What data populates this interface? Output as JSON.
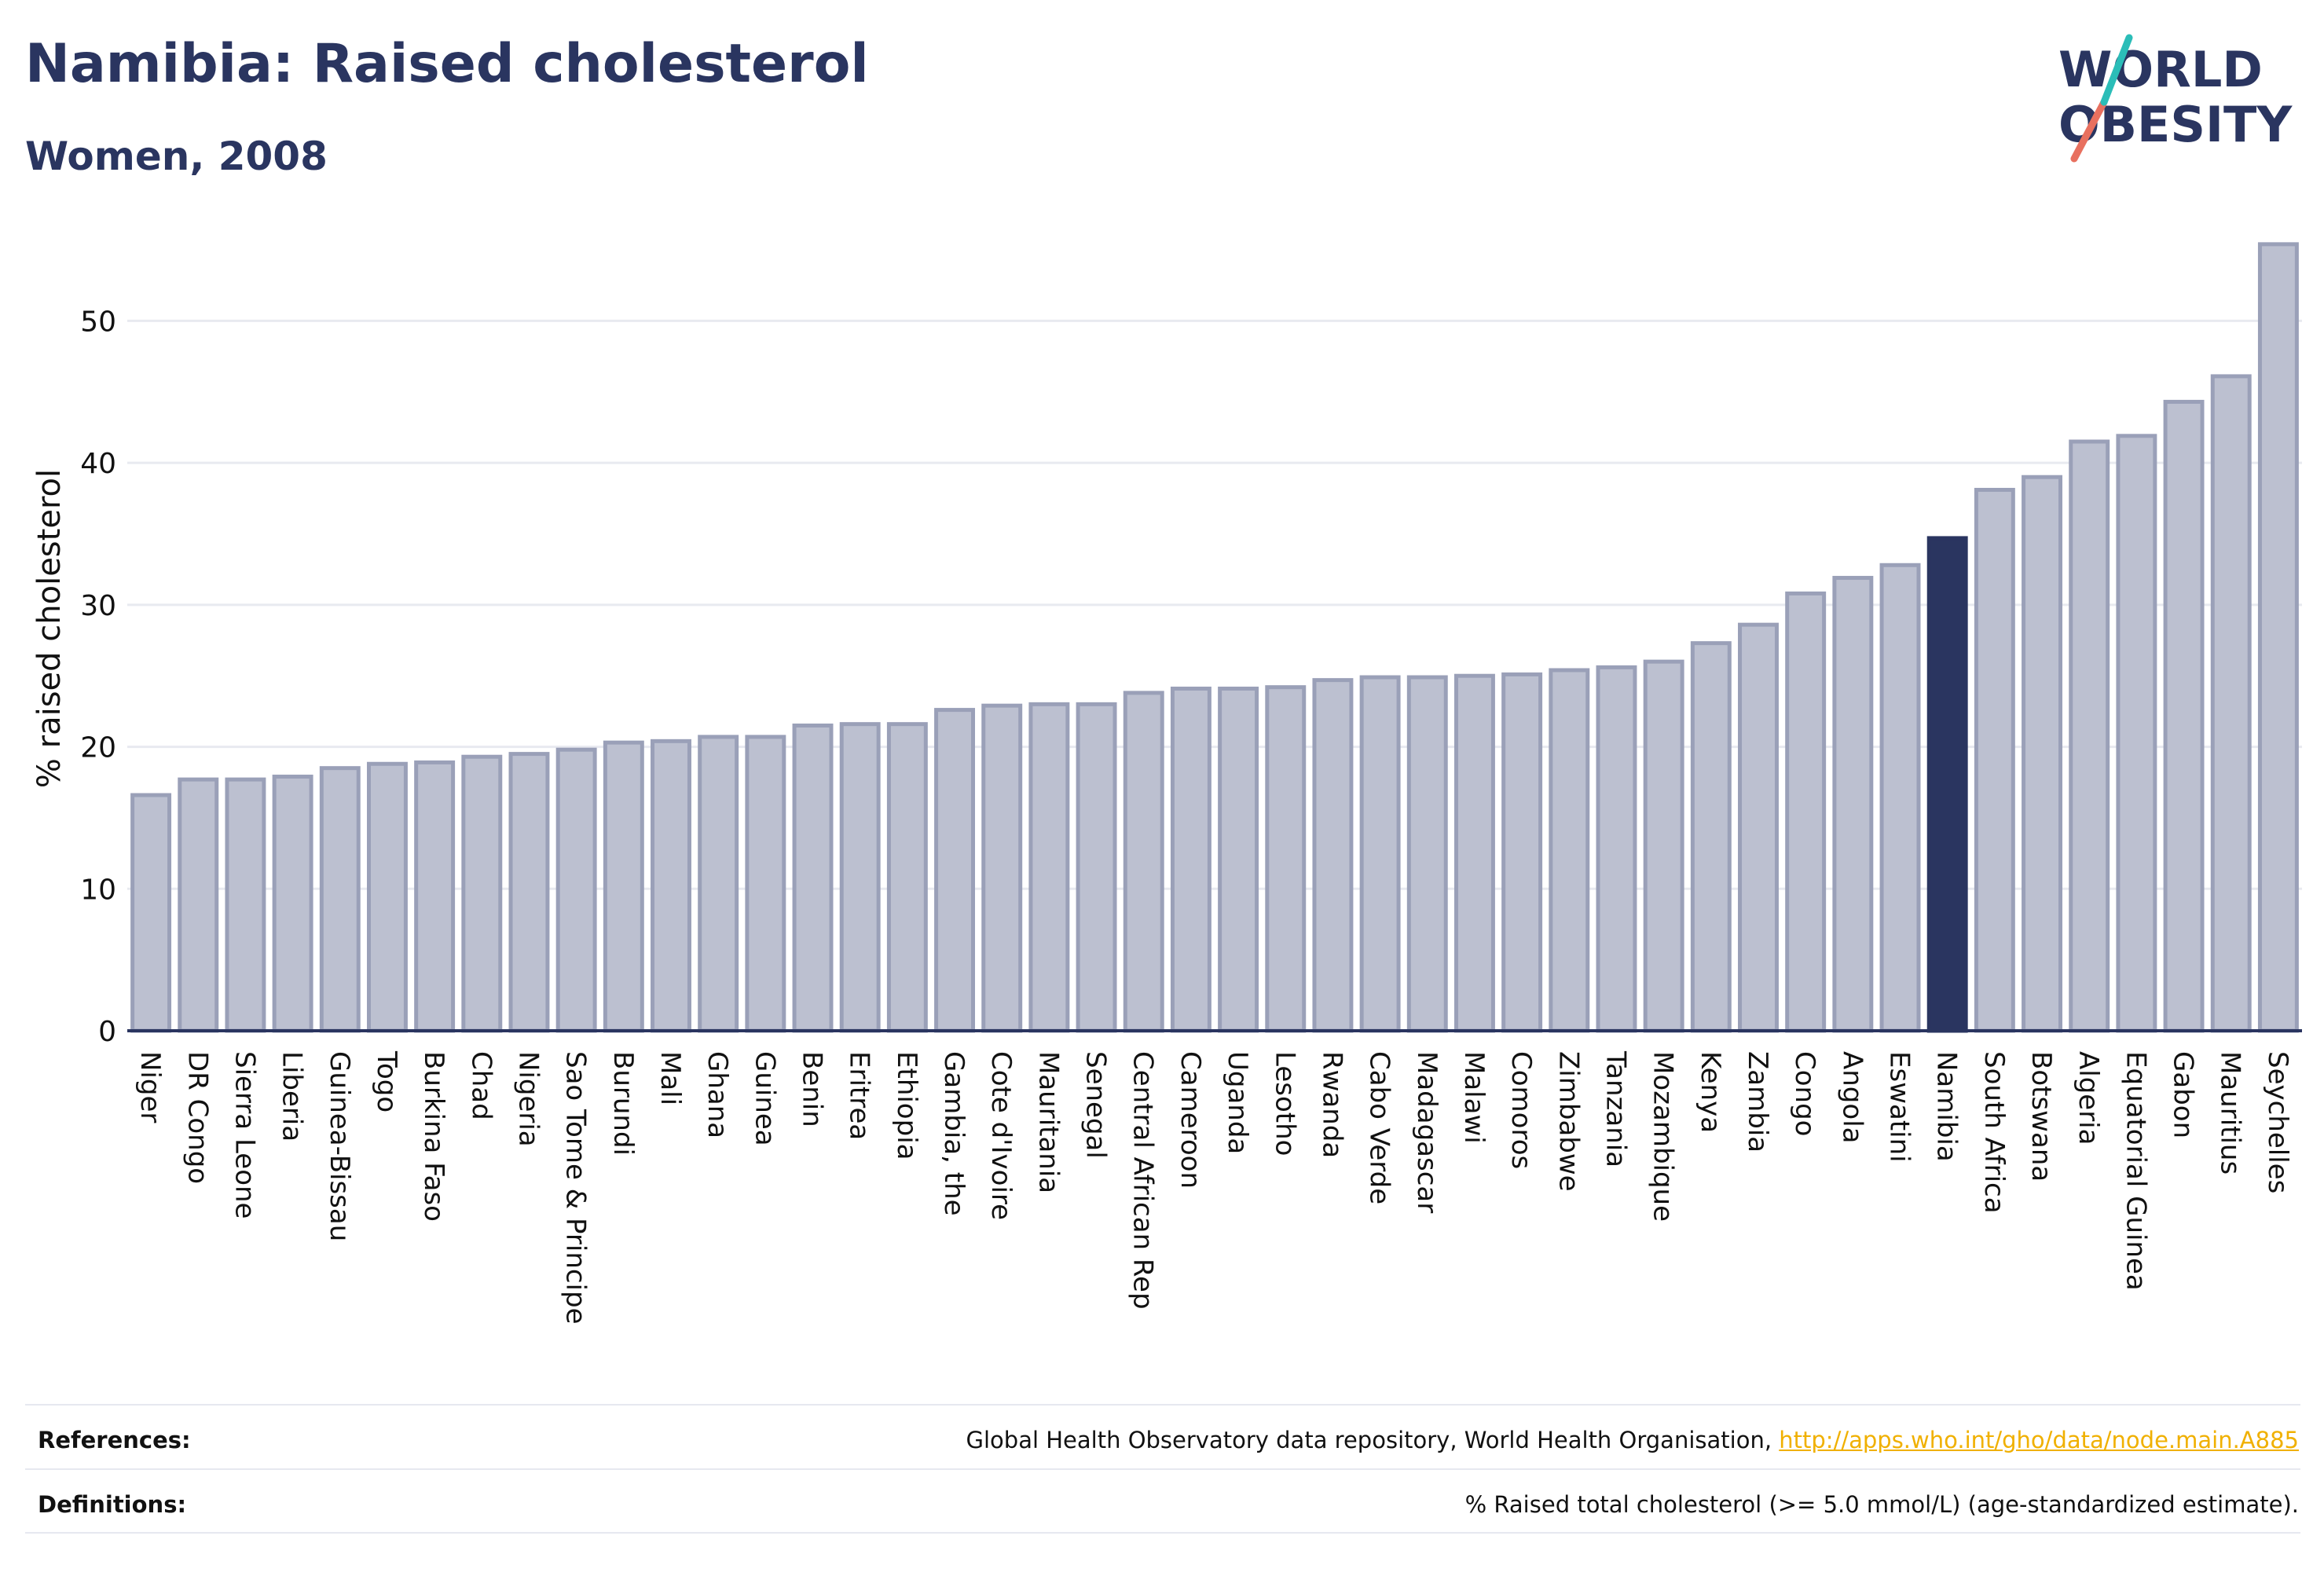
{
  "header": {
    "title": "Namibia: Raised cholesterol",
    "subtitle": "Women, 2008",
    "logo_line1": "WORLD",
    "logo_line2": "OBESITY"
  },
  "chart_data": {
    "type": "bar",
    "title": "Namibia: Raised cholesterol",
    "subtitle": "Women, 2008",
    "ylabel": "% raised cholesterol",
    "xlabel": "",
    "ylim": [
      0,
      56
    ],
    "yticks": [
      0,
      10,
      20,
      30,
      40,
      50
    ],
    "grid": true,
    "highlight": "Namibia",
    "categories": [
      "Niger",
      "DR Congo",
      "Sierra Leone",
      "Liberia",
      "Guinea-Bissau",
      "Togo",
      "Burkina Faso",
      "Chad",
      "Nigeria",
      "Sao Tome & Principe",
      "Burundi",
      "Mali",
      "Ghana",
      "Guinea",
      "Benin",
      "Eritrea",
      "Ethiopia",
      "Gambia, the",
      "Cote d'Ivoire",
      "Mauritania",
      "Senegal",
      "Central African Rep",
      "Cameroon",
      "Uganda",
      "Lesotho",
      "Rwanda",
      "Cabo Verde",
      "Madagascar",
      "Malawi",
      "Comoros",
      "Zimbabwe",
      "Tanzania",
      "Mozambique",
      "Kenya",
      "Zambia",
      "Congo",
      "Angola",
      "Eswatini",
      "Namibia",
      "South Africa",
      "Botswana",
      "Algeria",
      "Equatorial Guinea",
      "Gabon",
      "Mauritius",
      "Seychelles"
    ],
    "values": [
      16.6,
      17.7,
      17.7,
      17.9,
      18.5,
      18.8,
      18.9,
      19.3,
      19.5,
      19.8,
      20.3,
      20.4,
      20.7,
      20.7,
      21.5,
      21.6,
      21.6,
      22.6,
      22.9,
      23.0,
      23.0,
      23.8,
      24.1,
      24.1,
      24.2,
      24.7,
      24.9,
      24.9,
      25.0,
      25.1,
      25.4,
      25.6,
      26.0,
      27.3,
      28.6,
      30.8,
      31.9,
      32.8,
      34.7,
      38.1,
      39.0,
      41.5,
      41.9,
      44.3,
      46.1,
      55.4
    ],
    "colors": {
      "bar": "#bcc0d0",
      "bar_border": "#9aa0b8",
      "highlight": "#2a3560",
      "grid": "#e8eaf0",
      "axis": "#2a3560"
    }
  },
  "footer": {
    "references_label": "References:",
    "references_text": "Global Health Observatory data repository, World Health Organisation,",
    "references_link": "http://apps.who.int/gho/data/node.main.A885",
    "definitions_label": "Definitions:",
    "definitions_text": "% Raised total cholesterol (>= 5.0 mmol/L) (age-standardized estimate)."
  }
}
